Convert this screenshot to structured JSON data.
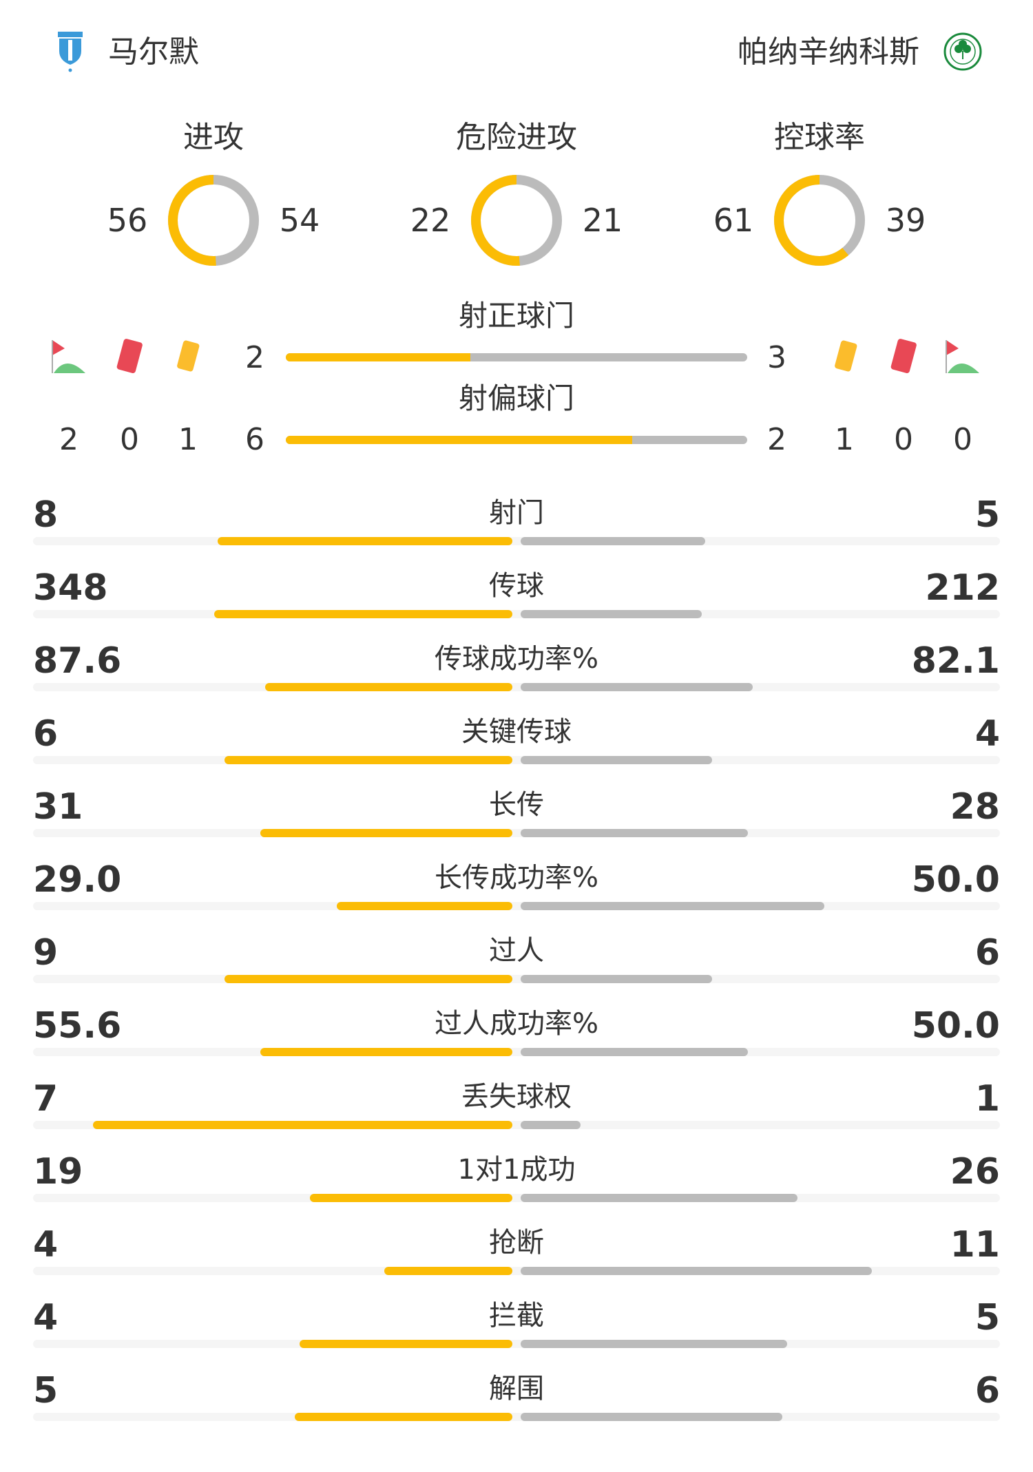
{
  "colors": {
    "home": "#fbbc05",
    "away": "#bbbbbb",
    "track": "#f5f5f5",
    "text": "#333333"
  },
  "home": {
    "name": "马尔默",
    "logo": "malmo-ff-crest",
    "logo_text": "MFF Malmö FF"
  },
  "away": {
    "name": "帕纳辛纳科斯",
    "logo": "panathinaikos-crest",
    "logo_text": "1908"
  },
  "donuts": [
    {
      "label": "进攻",
      "home": 56,
      "away": 54
    },
    {
      "label": "危险进攻",
      "home": 22,
      "away": 21
    },
    {
      "label": "控球率",
      "home": 61,
      "away": 39
    }
  ],
  "on_target": {
    "label": "射正球门",
    "home": 2,
    "away": 3
  },
  "off_target": {
    "label": "射偏球门",
    "home": 6,
    "away": 2
  },
  "home_counts": {
    "corners": 2,
    "red_cards": 0,
    "yellow_cards": 1
  },
  "away_counts": {
    "yellow_cards": 1,
    "red_cards": 0,
    "corners": 0
  },
  "stats": [
    {
      "label": "射门",
      "home": "8",
      "away": "5"
    },
    {
      "label": "传球",
      "home": "348",
      "away": "212"
    },
    {
      "label": "传球成功率%",
      "home": "87.6",
      "away": "82.1"
    },
    {
      "label": "关键传球",
      "home": "6",
      "away": "4"
    },
    {
      "label": "长传",
      "home": "31",
      "away": "28"
    },
    {
      "label": "长传成功率%",
      "home": "29.0",
      "away": "50.0"
    },
    {
      "label": "过人",
      "home": "9",
      "away": "6"
    },
    {
      "label": "过人成功率%",
      "home": "55.6",
      "away": "50.0"
    },
    {
      "label": "丢失球权",
      "home": "7",
      "away": "1"
    },
    {
      "label": "1对1成功",
      "home": "19",
      "away": "26"
    },
    {
      "label": "抢断",
      "home": "4",
      "away": "11"
    },
    {
      "label": "拦截",
      "home": "4",
      "away": "5"
    },
    {
      "label": "解围",
      "home": "5",
      "away": "6"
    }
  ]
}
